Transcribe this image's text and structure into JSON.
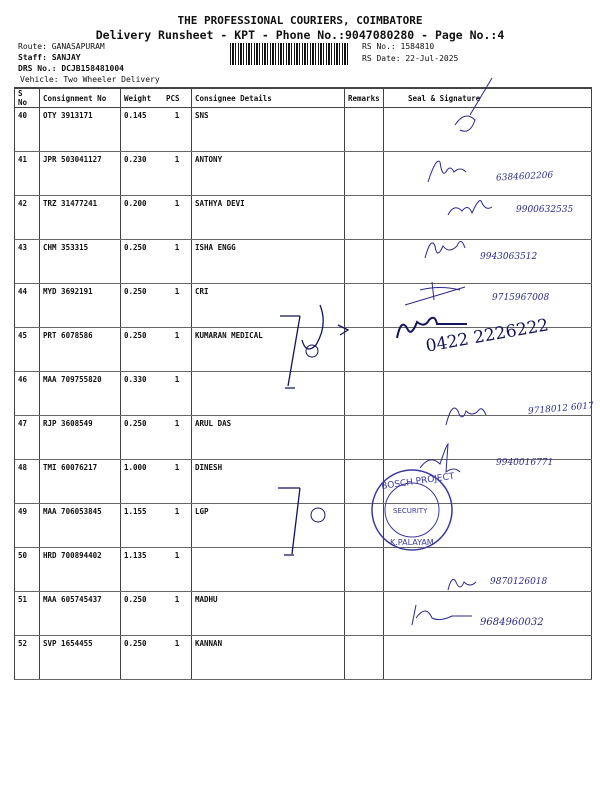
{
  "header": {
    "company": "THE PROFESSIONAL COURIERS, COIMBATORE",
    "subtitle": "Delivery Runsheet - KPT - Phone No.:9047080280 - Page No.:4",
    "route": "Route: GANASAPURAM",
    "staff": "Staff: SANJAY",
    "drs": "DRS No.: DCJB158481004",
    "vehicle": "Vehicle: Two Wheeler Delivery",
    "rs_no": "RS No.: 1584810",
    "rs_date": "RS Date: 22-Jul-2025"
  },
  "table": {
    "columns": [
      "S No",
      "Consignment No",
      "Weight",
      "PCS",
      "Consignee Details",
      "Remarks",
      "Seal & Signature"
    ],
    "rows": [
      {
        "sno": "40",
        "cno": "OTY 3913171",
        "weight": "0.145",
        "pcs": "1",
        "consignee": "SNS"
      },
      {
        "sno": "41",
        "cno": "JPR 503041127",
        "weight": "0.230",
        "pcs": "1",
        "consignee": "ANTONY"
      },
      {
        "sno": "42",
        "cno": "TRZ 31477241",
        "weight": "0.200",
        "pcs": "1",
        "consignee": "SATHYA DEVI"
      },
      {
        "sno": "43",
        "cno": "CHM 353315",
        "weight": "0.250",
        "pcs": "1",
        "consignee": "ISHA ENGG"
      },
      {
        "sno": "44",
        "cno": "MYD 3692191",
        "weight": "0.250",
        "pcs": "1",
        "consignee": "CRI"
      },
      {
        "sno": "45",
        "cno": "PRT 6078586",
        "weight": "0.250",
        "pcs": "1",
        "consignee": "KUMARAN MEDICAL"
      },
      {
        "sno": "46",
        "cno": "MAA 709755820",
        "weight": "0.330",
        "pcs": "1",
        "consignee": ""
      },
      {
        "sno": "47",
        "cno": "RJP 3608549",
        "weight": "0.250",
        "pcs": "1",
        "consignee": "ARUL DAS"
      },
      {
        "sno": "48",
        "cno": "TMI 60076217",
        "weight": "1.000",
        "pcs": "1",
        "consignee": "DINESH"
      },
      {
        "sno": "49",
        "cno": "MAA 706053845",
        "weight": "1.155",
        "pcs": "1",
        "consignee": "LGP"
      },
      {
        "sno": "50",
        "cno": "HRD 700894402",
        "weight": "1.135",
        "pcs": "1",
        "consignee": ""
      },
      {
        "sno": "51",
        "cno": "MAA 605745437",
        "weight": "0.250",
        "pcs": "1",
        "consignee": "MADHU"
      },
      {
        "sno": "52",
        "cno": "SVP 1654455",
        "weight": "0.250",
        "pcs": "1",
        "consignee": "KANNAN"
      }
    ]
  },
  "handwritten": {
    "phone_41": "6384602206",
    "phone_42": "9900632535",
    "phone_43": "9943063512",
    "phone_44": "9715967008",
    "phone_45": "0422 2226222",
    "phone_47": "9718012 6017",
    "phone_48": "9940016771",
    "phone_51": "9870126018",
    "phone_52": "9684960032"
  },
  "stamp": {
    "text_top": "L.G.B. BOSCH PROJECT",
    "text_mid": "SECURITY",
    "text_bottom": "K. PALAYAM",
    "color": "#3a3aa0"
  },
  "colors": {
    "ink": "#2a2a8a",
    "dark_ink": "#14145a"
  }
}
